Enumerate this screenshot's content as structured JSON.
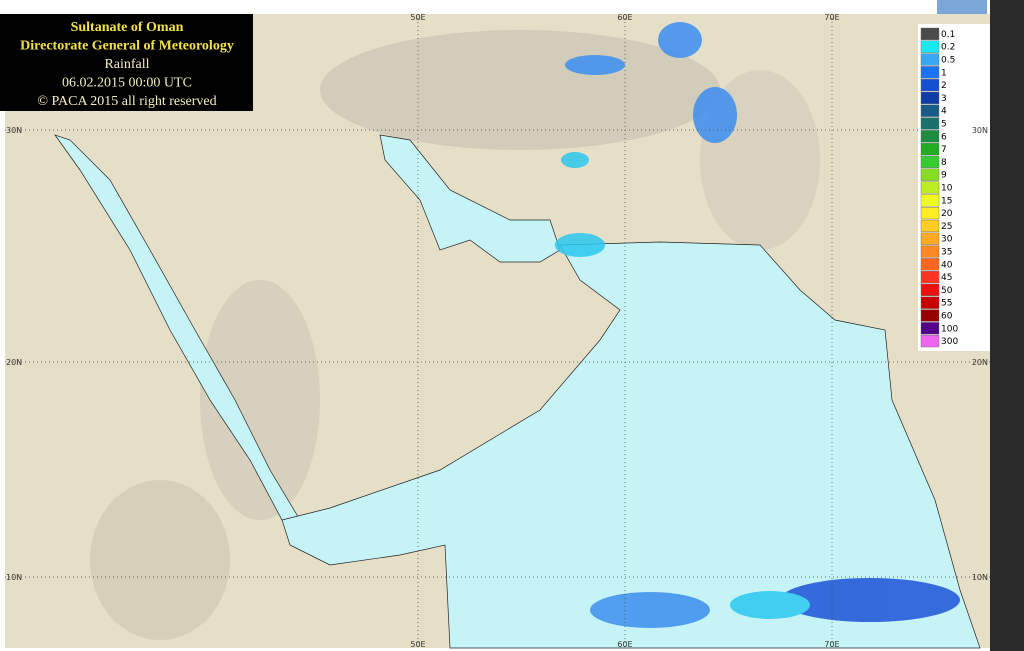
{
  "header": {
    "lines": [
      "Sultanate of Oman",
      "Directorate General of Meteorology",
      "Rainfall",
      "06.02.2015 00:00 UTC",
      "© PACA 2015 all right reserved"
    ]
  },
  "legend": {
    "items": [
      {
        "label": "0.1",
        "color": "#4a4a4a"
      },
      {
        "label": "0.2",
        "color": "#19e8f0"
      },
      {
        "label": "0.5",
        "color": "#38a8f5"
      },
      {
        "label": "1",
        "color": "#1c72f0"
      },
      {
        "label": "2",
        "color": "#1450cf"
      },
      {
        "label": "3",
        "color": "#103ca6"
      },
      {
        "label": "4",
        "color": "#185a88"
      },
      {
        "label": "5",
        "color": "#1a706a"
      },
      {
        "label": "6",
        "color": "#1c8c3e"
      },
      {
        "label": "7",
        "color": "#22ac22"
      },
      {
        "label": "8",
        "color": "#36cc30"
      },
      {
        "label": "9",
        "color": "#88dc22"
      },
      {
        "label": "10",
        "color": "#bcec22"
      },
      {
        "label": "15",
        "color": "#eefa22"
      },
      {
        "label": "20",
        "color": "#ffec22"
      },
      {
        "label": "25",
        "color": "#ffcc22"
      },
      {
        "label": "30",
        "color": "#ffaa22"
      },
      {
        "label": "35",
        "color": "#ff8822"
      },
      {
        "label": "40",
        "color": "#ff6420"
      },
      {
        "label": "45",
        "color": "#ff3420"
      },
      {
        "label": "50",
        "color": "#ec1010"
      },
      {
        "label": "55",
        "color": "#c80000"
      },
      {
        "label": "60",
        "color": "#960000"
      },
      {
        "label": "100",
        "color": "#520088"
      },
      {
        "label": "300",
        "color": "#ee66ee"
      }
    ]
  },
  "graticule": {
    "lon_labels": [
      "50E",
      "60E",
      "70E"
    ],
    "lat_labels": [
      "30N",
      "20N",
      "10N"
    ]
  }
}
